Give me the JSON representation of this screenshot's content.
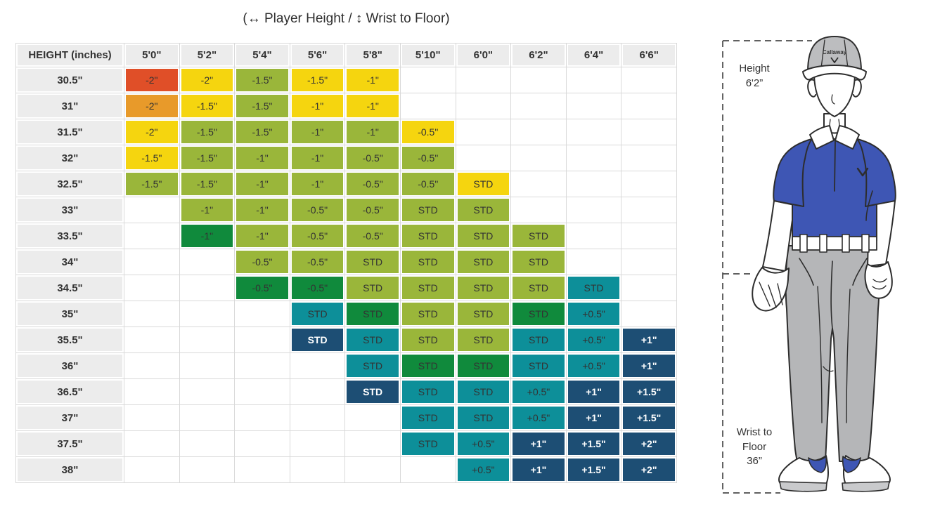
{
  "title": "(↔ Player Height /  ↕  Wrist to Floor)",
  "colors": {
    "red": "#e04f28",
    "orange": "#e89a2a",
    "yellow": "#f5d50f",
    "olive": "#9ab63a",
    "green": "#108a3c",
    "teal": "#0d8f99",
    "navy": "#1d4e74",
    "header_bg": "#ececec",
    "grid_line": "#d9d9d9",
    "text_dark": "#333333",
    "text_light": "#ffffff",
    "shirt_blue": "#3e56b4",
    "pants_gray": "#b5b6b8",
    "cap_gray": "#bcbdbf",
    "sole_gray": "#c9cacc",
    "outline": "#2d2d2d"
  },
  "chart_data": {
    "type": "heatmap",
    "title": "(↔ Player Height /  ↕  Wrist to Floor)",
    "x_label": "Player Height",
    "y_label": "Wrist to Floor (inches)",
    "corner_label": "HEIGHT (inches)",
    "columns": [
      "5'0\"",
      "5'2\"",
      "5'4\"",
      "5'6\"",
      "5'8\"",
      "5'10\"",
      "6'0\"",
      "6'2\"",
      "6'4\"",
      "6'6\""
    ],
    "rows": [
      "30.5\"",
      "31\"",
      "31.5\"",
      "32\"",
      "32.5\"",
      "33\"",
      "33.5\"",
      "34\"",
      "34.5\"",
      "35\"",
      "35.5\"",
      "36\"",
      "36.5\"",
      "37\"",
      "37.5\"",
      "38\""
    ],
    "cells": [
      [
        {
          "v": "-2\"",
          "c": "red"
        },
        {
          "v": "-2\"",
          "c": "yellow"
        },
        {
          "v": "-1.5\"",
          "c": "olive"
        },
        {
          "v": "-1.5\"",
          "c": "yellow"
        },
        {
          "v": "-1\"",
          "c": "yellow"
        },
        {
          "v": "",
          "c": "none"
        },
        {
          "v": "",
          "c": "none"
        },
        {
          "v": "",
          "c": "none"
        },
        {
          "v": "",
          "c": "none"
        },
        {
          "v": "",
          "c": "none"
        }
      ],
      [
        {
          "v": "-2\"",
          "c": "orange"
        },
        {
          "v": "-1.5\"",
          "c": "yellow"
        },
        {
          "v": "-1.5\"",
          "c": "olive"
        },
        {
          "v": "-1\"",
          "c": "yellow"
        },
        {
          "v": "-1\"",
          "c": "yellow"
        },
        {
          "v": "",
          "c": "none"
        },
        {
          "v": "",
          "c": "none"
        },
        {
          "v": "",
          "c": "none"
        },
        {
          "v": "",
          "c": "none"
        },
        {
          "v": "",
          "c": "none"
        }
      ],
      [
        {
          "v": "-2\"",
          "c": "yellow"
        },
        {
          "v": "-1.5\"",
          "c": "olive"
        },
        {
          "v": "-1.5\"",
          "c": "olive"
        },
        {
          "v": "-1\"",
          "c": "olive"
        },
        {
          "v": "-1\"",
          "c": "olive"
        },
        {
          "v": "-0.5\"",
          "c": "yellow"
        },
        {
          "v": "",
          "c": "none"
        },
        {
          "v": "",
          "c": "none"
        },
        {
          "v": "",
          "c": "none"
        },
        {
          "v": "",
          "c": "none"
        }
      ],
      [
        {
          "v": "-1.5\"",
          "c": "yellow"
        },
        {
          "v": "-1.5\"",
          "c": "olive"
        },
        {
          "v": "-1\"",
          "c": "olive"
        },
        {
          "v": "-1\"",
          "c": "olive"
        },
        {
          "v": "-0.5\"",
          "c": "olive"
        },
        {
          "v": "-0.5\"",
          "c": "olive"
        },
        {
          "v": "",
          "c": "none"
        },
        {
          "v": "",
          "c": "none"
        },
        {
          "v": "",
          "c": "none"
        },
        {
          "v": "",
          "c": "none"
        }
      ],
      [
        {
          "v": "-1.5\"",
          "c": "olive"
        },
        {
          "v": "-1.5\"",
          "c": "olive"
        },
        {
          "v": "-1\"",
          "c": "olive"
        },
        {
          "v": "-1\"",
          "c": "olive"
        },
        {
          "v": "-0.5\"",
          "c": "olive"
        },
        {
          "v": "-0.5\"",
          "c": "olive"
        },
        {
          "v": "STD",
          "c": "yellow"
        },
        {
          "v": "",
          "c": "none"
        },
        {
          "v": "",
          "c": "none"
        },
        {
          "v": "",
          "c": "none"
        }
      ],
      [
        {
          "v": "",
          "c": "none"
        },
        {
          "v": "-1\"",
          "c": "olive"
        },
        {
          "v": "-1\"",
          "c": "olive"
        },
        {
          "v": "-0.5\"",
          "c": "olive"
        },
        {
          "v": "-0.5\"",
          "c": "olive"
        },
        {
          "v": "STD",
          "c": "olive"
        },
        {
          "v": "STD",
          "c": "olive"
        },
        {
          "v": "",
          "c": "none"
        },
        {
          "v": "",
          "c": "none"
        },
        {
          "v": "",
          "c": "none"
        }
      ],
      [
        {
          "v": "",
          "c": "none"
        },
        {
          "v": "-1\"",
          "c": "green"
        },
        {
          "v": "-1\"",
          "c": "olive"
        },
        {
          "v": "-0.5\"",
          "c": "olive"
        },
        {
          "v": "-0.5\"",
          "c": "olive"
        },
        {
          "v": "STD",
          "c": "olive"
        },
        {
          "v": "STD",
          "c": "olive"
        },
        {
          "v": "STD",
          "c": "olive"
        },
        {
          "v": "",
          "c": "none"
        },
        {
          "v": "",
          "c": "none"
        }
      ],
      [
        {
          "v": "",
          "c": "none"
        },
        {
          "v": "",
          "c": "none"
        },
        {
          "v": "-0.5\"",
          "c": "olive"
        },
        {
          "v": "-0.5\"",
          "c": "olive"
        },
        {
          "v": "STD",
          "c": "olive"
        },
        {
          "v": "STD",
          "c": "olive"
        },
        {
          "v": "STD",
          "c": "olive"
        },
        {
          "v": "STD",
          "c": "olive"
        },
        {
          "v": "",
          "c": "none"
        },
        {
          "v": "",
          "c": "none"
        }
      ],
      [
        {
          "v": "",
          "c": "none"
        },
        {
          "v": "",
          "c": "none"
        },
        {
          "v": "-0.5\"",
          "c": "green"
        },
        {
          "v": "-0.5\"",
          "c": "green"
        },
        {
          "v": "STD",
          "c": "olive"
        },
        {
          "v": "STD",
          "c": "olive"
        },
        {
          "v": "STD",
          "c": "olive"
        },
        {
          "v": "STD",
          "c": "olive"
        },
        {
          "v": "STD",
          "c": "teal"
        },
        {
          "v": "",
          "c": "none"
        }
      ],
      [
        {
          "v": "",
          "c": "none"
        },
        {
          "v": "",
          "c": "none"
        },
        {
          "v": "",
          "c": "none"
        },
        {
          "v": "STD",
          "c": "teal"
        },
        {
          "v": "STD",
          "c": "green"
        },
        {
          "v": "STD",
          "c": "olive"
        },
        {
          "v": "STD",
          "c": "olive"
        },
        {
          "v": "STD",
          "c": "green"
        },
        {
          "v": "+0.5\"",
          "c": "teal"
        },
        {
          "v": "",
          "c": "none"
        }
      ],
      [
        {
          "v": "",
          "c": "none"
        },
        {
          "v": "",
          "c": "none"
        },
        {
          "v": "",
          "c": "none"
        },
        {
          "v": "STD",
          "c": "navy"
        },
        {
          "v": "STD",
          "c": "teal"
        },
        {
          "v": "STD",
          "c": "olive"
        },
        {
          "v": "STD",
          "c": "olive"
        },
        {
          "v": "STD",
          "c": "teal"
        },
        {
          "v": "+0.5\"",
          "c": "teal"
        },
        {
          "v": "+1\"",
          "c": "navy"
        }
      ],
      [
        {
          "v": "",
          "c": "none"
        },
        {
          "v": "",
          "c": "none"
        },
        {
          "v": "",
          "c": "none"
        },
        {
          "v": "",
          "c": "none"
        },
        {
          "v": "STD",
          "c": "teal"
        },
        {
          "v": "STD",
          "c": "green"
        },
        {
          "v": "STD",
          "c": "green"
        },
        {
          "v": "STD",
          "c": "teal"
        },
        {
          "v": "+0.5\"",
          "c": "teal"
        },
        {
          "v": "+1\"",
          "c": "navy"
        }
      ],
      [
        {
          "v": "",
          "c": "none"
        },
        {
          "v": "",
          "c": "none"
        },
        {
          "v": "",
          "c": "none"
        },
        {
          "v": "",
          "c": "none"
        },
        {
          "v": "STD",
          "c": "navy"
        },
        {
          "v": "STD",
          "c": "teal"
        },
        {
          "v": "STD",
          "c": "teal"
        },
        {
          "v": "+0.5\"",
          "c": "teal"
        },
        {
          "v": "+1\"",
          "c": "navy"
        },
        {
          "v": "+1.5\"",
          "c": "navy"
        }
      ],
      [
        {
          "v": "",
          "c": "none"
        },
        {
          "v": "",
          "c": "none"
        },
        {
          "v": "",
          "c": "none"
        },
        {
          "v": "",
          "c": "none"
        },
        {
          "v": "",
          "c": "none"
        },
        {
          "v": "STD",
          "c": "teal"
        },
        {
          "v": "STD",
          "c": "teal"
        },
        {
          "v": "+0.5\"",
          "c": "teal"
        },
        {
          "v": "+1\"",
          "c": "navy"
        },
        {
          "v": "+1.5\"",
          "c": "navy"
        }
      ],
      [
        {
          "v": "",
          "c": "none"
        },
        {
          "v": "",
          "c": "none"
        },
        {
          "v": "",
          "c": "none"
        },
        {
          "v": "",
          "c": "none"
        },
        {
          "v": "",
          "c": "none"
        },
        {
          "v": "STD",
          "c": "teal"
        },
        {
          "v": "+0.5\"",
          "c": "teal"
        },
        {
          "v": "+1\"",
          "c": "navy"
        },
        {
          "v": "+1.5\"",
          "c": "navy"
        },
        {
          "v": "+2\"",
          "c": "navy"
        }
      ],
      [
        {
          "v": "",
          "c": "none"
        },
        {
          "v": "",
          "c": "none"
        },
        {
          "v": "",
          "c": "none"
        },
        {
          "v": "",
          "c": "none"
        },
        {
          "v": "",
          "c": "none"
        },
        {
          "v": "",
          "c": "none"
        },
        {
          "v": "+0.5\"",
          "c": "teal"
        },
        {
          "v": "+1\"",
          "c": "navy"
        },
        {
          "v": "+1.5\"",
          "c": "navy"
        },
        {
          "v": "+2\"",
          "c": "navy"
        }
      ]
    ]
  },
  "figure": {
    "height_label": "Height",
    "height_value": "6'2”",
    "wrist_line1": "Wrist to",
    "wrist_line2": "Floor",
    "wrist_value": "36”",
    "cap_brand": "Callaway"
  }
}
